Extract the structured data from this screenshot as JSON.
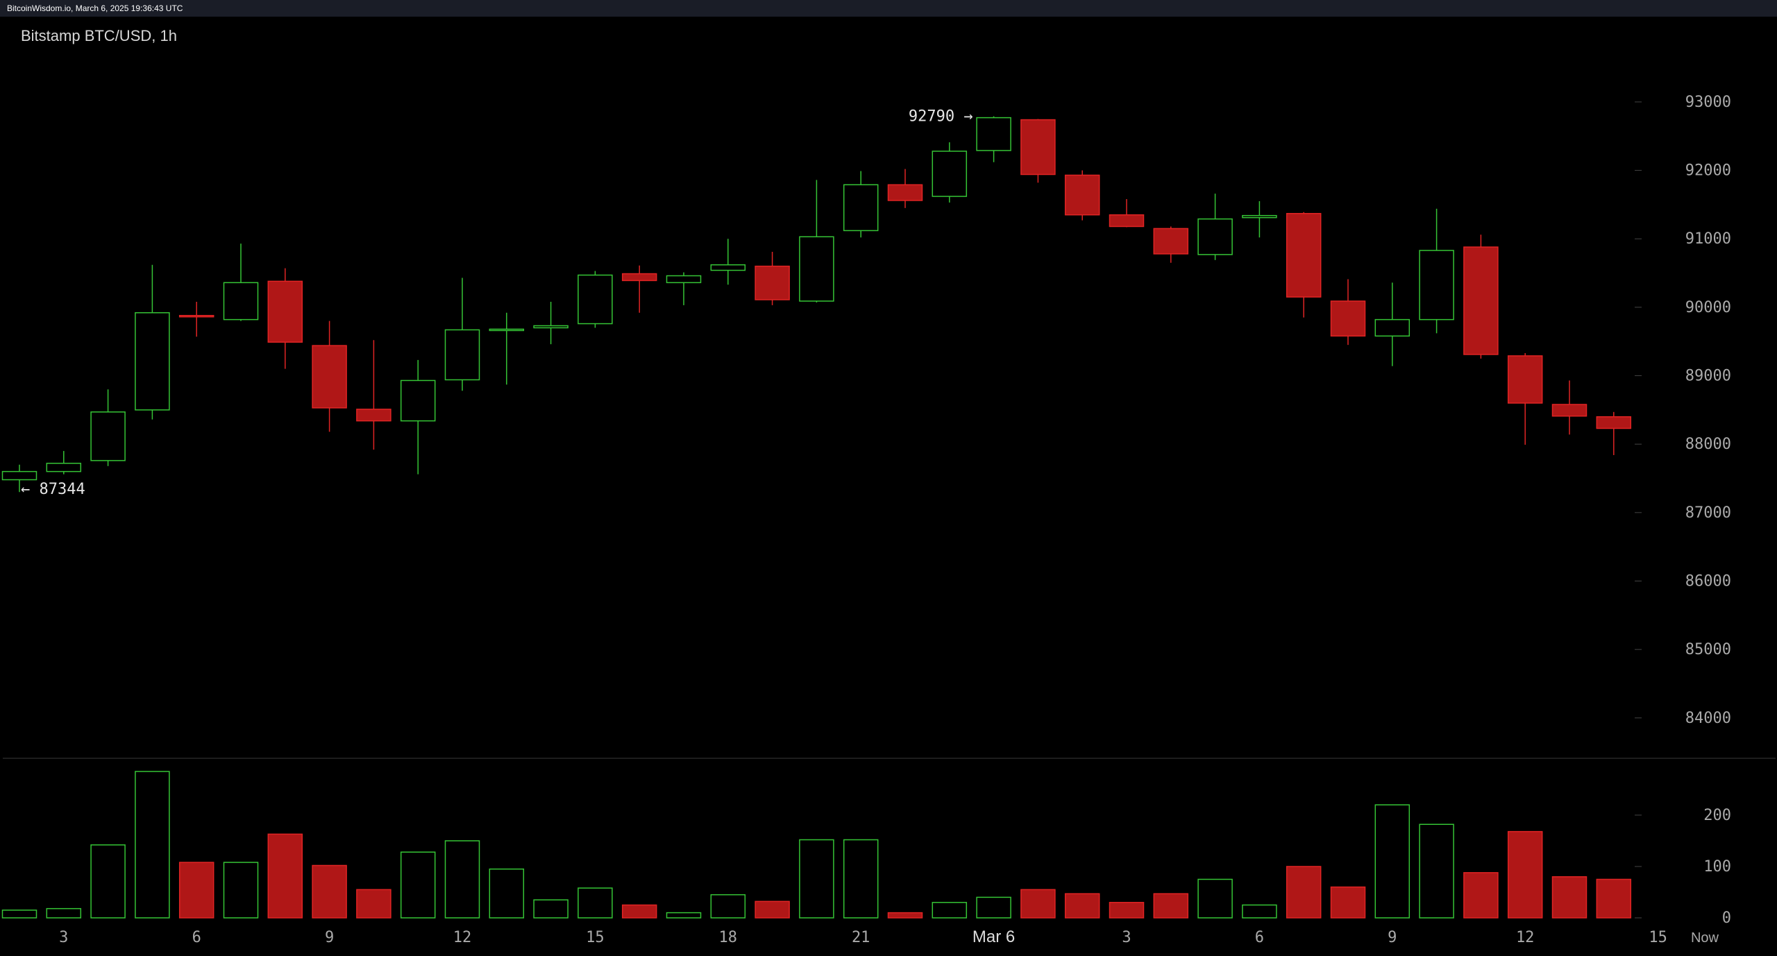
{
  "header": {
    "meta": "BitcoinWisdom.io, March 6, 2025 19:36:43 UTC",
    "title": "Bitstamp BTC/USD, 1h"
  },
  "colors": {
    "up": "#35c435",
    "down": "#b01717",
    "down_border": "#e02424",
    "axis_text": "#aaaaaa",
    "tick": "#444444"
  },
  "chart_data": {
    "type": "candlestick",
    "title": "Bitstamp BTC/USD, 1h",
    "y_ticks": [
      "84000",
      "85000",
      "86000",
      "87000",
      "88000",
      "89000",
      "90000",
      "91000",
      "92000",
      "93000"
    ],
    "ylim": [
      83400,
      93800
    ],
    "volume_ticks": [
      "0",
      "100",
      "200"
    ],
    "volume_lim": [
      0,
      285
    ],
    "x_ticks": [
      {
        "label": "3",
        "i": 1
      },
      {
        "label": "6",
        "i": 4
      },
      {
        "label": "9",
        "i": 7
      },
      {
        "label": "12",
        "i": 10
      },
      {
        "label": "15",
        "i": 13
      },
      {
        "label": "18",
        "i": 16
      },
      {
        "label": "21",
        "i": 19
      },
      {
        "label": "Mar 6",
        "i": 22
      },
      {
        "label": "3",
        "i": 25
      },
      {
        "label": "6",
        "i": 28
      },
      {
        "label": "9",
        "i": 31
      },
      {
        "label": "12",
        "i": 34
      },
      {
        "label": "15",
        "i": 37
      }
    ],
    "now_label": "Now",
    "high_marker": {
      "label": "92790 →",
      "value": 92790
    },
    "low_marker": {
      "label": "← 87344",
      "value": 87344
    },
    "candles": [
      {
        "o": 87480,
        "h": 87700,
        "l": 87300,
        "c": 87600,
        "v": 15
      },
      {
        "o": 87600,
        "h": 87900,
        "l": 87560,
        "c": 87720,
        "v": 18
      },
      {
        "o": 87760,
        "h": 88800,
        "l": 87680,
        "c": 88470,
        "v": 142
      },
      {
        "o": 88500,
        "h": 90620,
        "l": 88360,
        "c": 89920,
        "v": 285
      },
      {
        "o": 89880,
        "h": 90080,
        "l": 89570,
        "c": 89860,
        "v": 108
      },
      {
        "o": 89820,
        "h": 90930,
        "l": 89800,
        "c": 90360,
        "v": 108
      },
      {
        "o": 90380,
        "h": 90570,
        "l": 89100,
        "c": 89490,
        "v": 163
      },
      {
        "o": 89440,
        "h": 89800,
        "l": 88180,
        "c": 88530,
        "v": 102
      },
      {
        "o": 88510,
        "h": 89520,
        "l": 87920,
        "c": 88340,
        "v": 55
      },
      {
        "o": 88340,
        "h": 89230,
        "l": 87560,
        "c": 88930,
        "v": 128
      },
      {
        "o": 88940,
        "h": 90430,
        "l": 88780,
        "c": 89670,
        "v": 150
      },
      {
        "o": 89660,
        "h": 89920,
        "l": 88870,
        "c": 89680,
        "v": 95
      },
      {
        "o": 89700,
        "h": 90080,
        "l": 89460,
        "c": 89730,
        "v": 35
      },
      {
        "o": 89760,
        "h": 90530,
        "l": 89700,
        "c": 90470,
        "v": 58
      },
      {
        "o": 90490,
        "h": 90610,
        "l": 89920,
        "c": 90390,
        "v": 25
      },
      {
        "o": 90360,
        "h": 90510,
        "l": 90030,
        "c": 90460,
        "v": 10
      },
      {
        "o": 90540,
        "h": 91000,
        "l": 90330,
        "c": 90620,
        "v": 45
      },
      {
        "o": 90600,
        "h": 90810,
        "l": 90030,
        "c": 90110,
        "v": 32
      },
      {
        "o": 90090,
        "h": 91860,
        "l": 90070,
        "c": 91030,
        "v": 152
      },
      {
        "o": 91120,
        "h": 91990,
        "l": 91020,
        "c": 91790,
        "v": 152
      },
      {
        "o": 91790,
        "h": 92020,
        "l": 91450,
        "c": 91560,
        "v": 10
      },
      {
        "o": 91620,
        "h": 92410,
        "l": 91530,
        "c": 92280,
        "v": 30
      },
      {
        "o": 92290,
        "h": 92790,
        "l": 92120,
        "c": 92770,
        "v": 40
      },
      {
        "o": 92740,
        "h": 92750,
        "l": 91820,
        "c": 91940,
        "v": 55
      },
      {
        "o": 91930,
        "h": 92000,
        "l": 91270,
        "c": 91350,
        "v": 47
      },
      {
        "o": 91350,
        "h": 91580,
        "l": 91170,
        "c": 91180,
        "v": 30
      },
      {
        "o": 91150,
        "h": 91180,
        "l": 90650,
        "c": 90780,
        "v": 47
      },
      {
        "o": 90770,
        "h": 91660,
        "l": 90690,
        "c": 91290,
        "v": 75
      },
      {
        "o": 91310,
        "h": 91550,
        "l": 91020,
        "c": 91340,
        "v": 25
      },
      {
        "o": 91370,
        "h": 91390,
        "l": 89850,
        "c": 90150,
        "v": 100
      },
      {
        "o": 90090,
        "h": 90410,
        "l": 89450,
        "c": 89580,
        "v": 60
      },
      {
        "o": 89580,
        "h": 90360,
        "l": 89140,
        "c": 89820,
        "v": 220
      },
      {
        "o": 89820,
        "h": 91440,
        "l": 89620,
        "c": 90830,
        "v": 182
      },
      {
        "o": 90880,
        "h": 91060,
        "l": 89250,
        "c": 89310,
        "v": 88
      },
      {
        "o": 89290,
        "h": 89330,
        "l": 87990,
        "c": 88600,
        "v": 168
      },
      {
        "o": 88580,
        "h": 88930,
        "l": 88140,
        "c": 88410,
        "v": 80
      },
      {
        "o": 88400,
        "h": 88470,
        "l": 87840,
        "c": 88230,
        "v": 75
      }
    ]
  }
}
